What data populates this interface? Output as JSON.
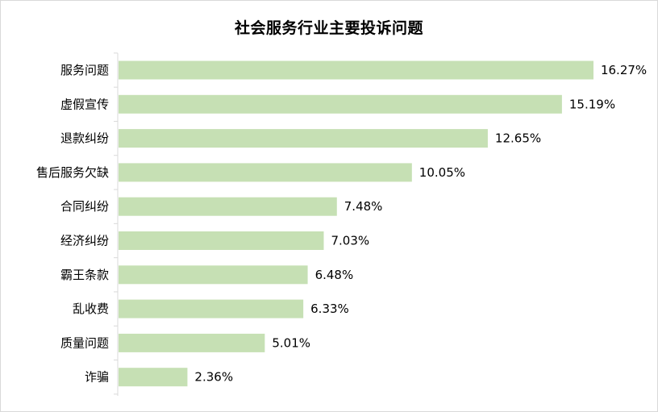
{
  "chart_data": {
    "type": "bar",
    "orientation": "horizontal",
    "title": "社会服务行业主要投诉问题",
    "categories": [
      "服务问题",
      "虚假宣传",
      "退款纠纷",
      "售后服务欠缺",
      "合同纠纷",
      "经济纠纷",
      "霸王条款",
      "乱收费",
      "质量问题",
      "诈骗"
    ],
    "values": [
      16.27,
      15.19,
      12.65,
      10.05,
      7.48,
      7.03,
      6.48,
      6.33,
      5.01,
      2.36
    ],
    "value_labels": [
      "16.27%",
      "15.19%",
      "12.65%",
      "10.05%",
      "7.48%",
      "7.03%",
      "6.48%",
      "6.33%",
      "5.01%",
      "2.36%"
    ],
    "unit": "%",
    "xlim": [
      0,
      18
    ],
    "grid": false,
    "legend": "none",
    "bar_color": "#c6e0b4",
    "axis_color": "#d9d9d9"
  }
}
